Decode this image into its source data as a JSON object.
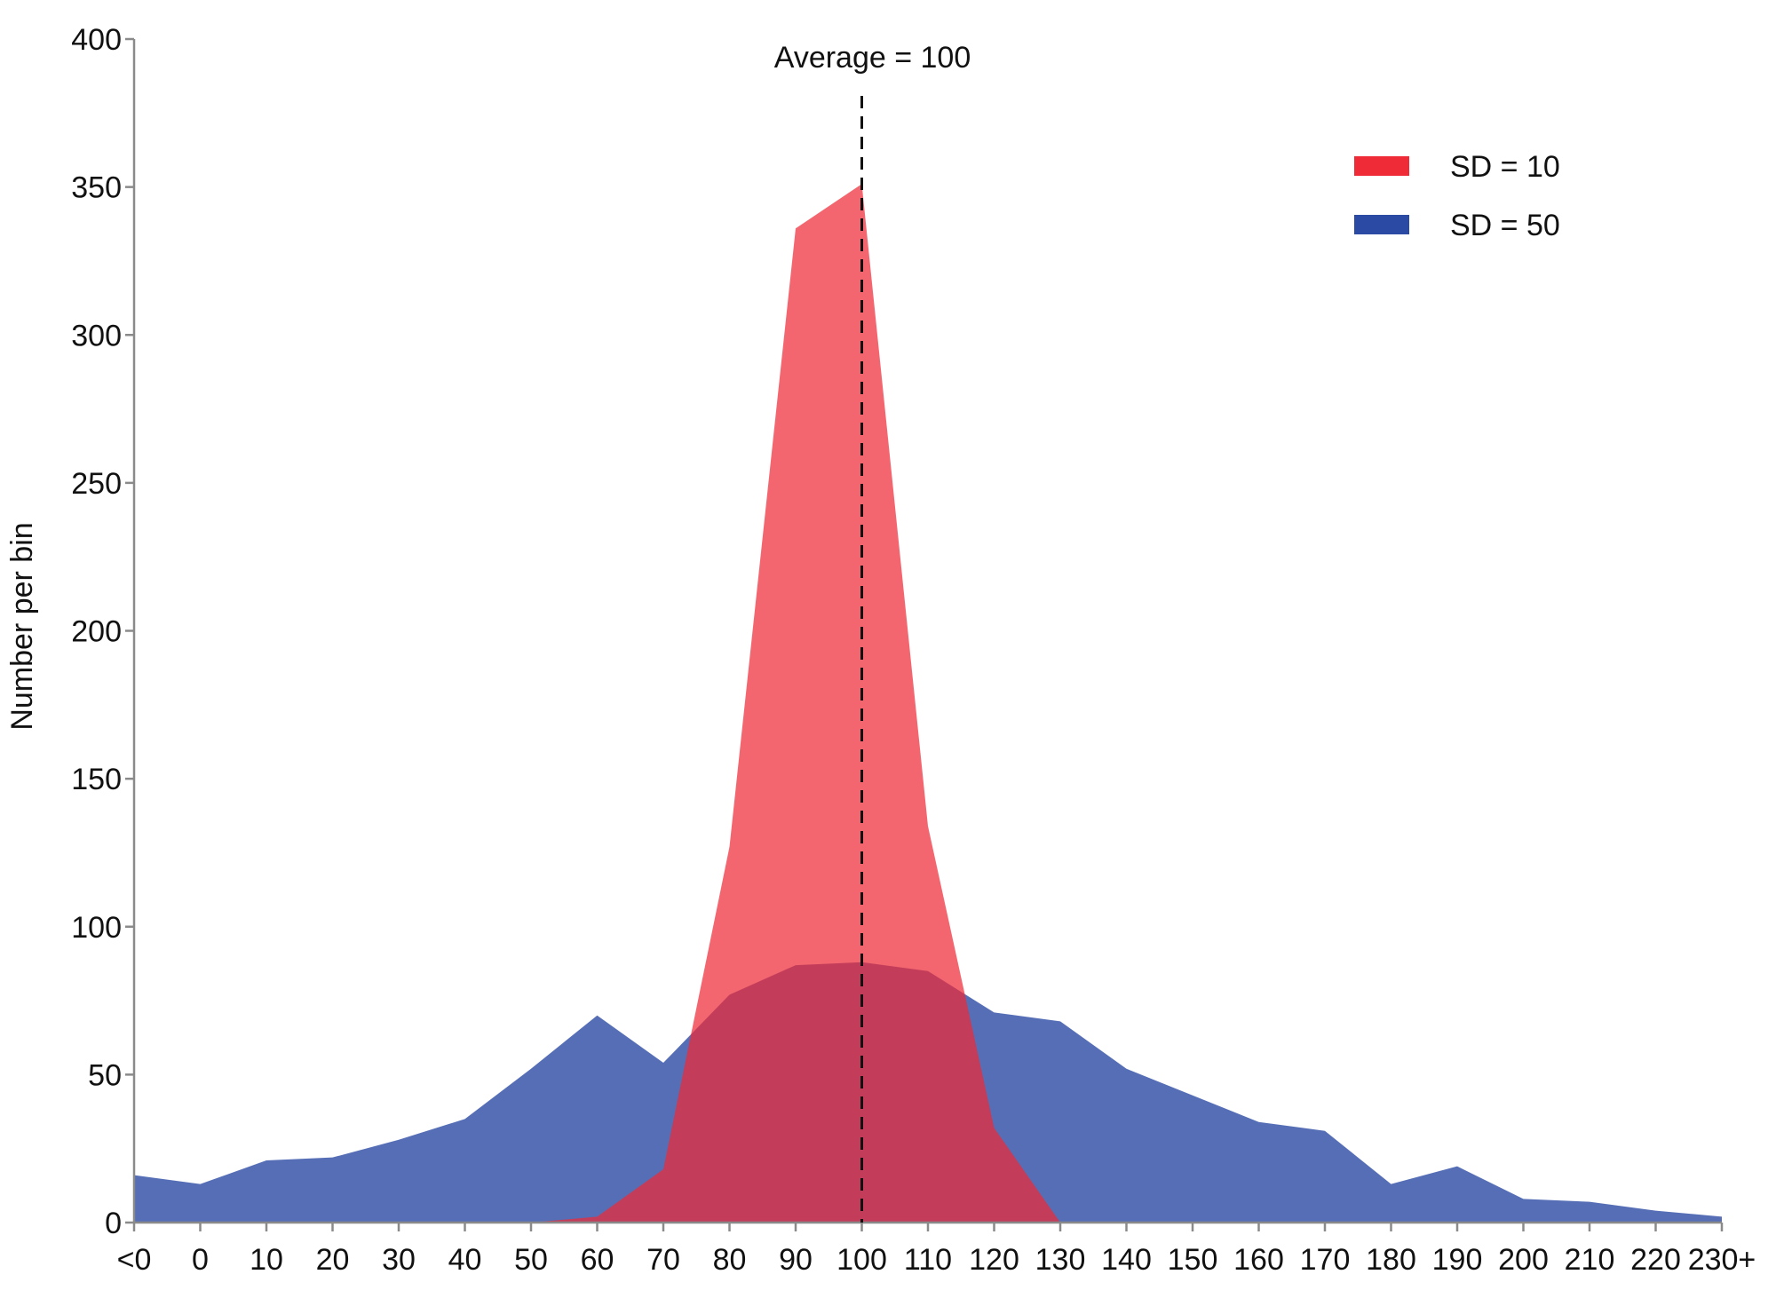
{
  "chart_data": {
    "type": "area",
    "title": "",
    "xlabel": "",
    "ylabel": "Number per bin",
    "categories": [
      "<0",
      "0",
      "10",
      "20",
      "30",
      "40",
      "50",
      "60",
      "70",
      "80",
      "90",
      "100",
      "110",
      "120",
      "130",
      "140",
      "150",
      "160",
      "170",
      "180",
      "190",
      "200",
      "210",
      "220",
      "230+"
    ],
    "ylim": [
      0,
      400
    ],
    "yticks": [
      0,
      50,
      100,
      150,
      200,
      250,
      300,
      350,
      400
    ],
    "grid": false,
    "legend_position": "top-right",
    "series": [
      {
        "name": "SD = 50",
        "color": "#2b4aa3",
        "values": [
          16,
          13,
          21,
          22,
          28,
          35,
          52,
          70,
          54,
          77,
          87,
          88,
          85,
          71,
          68,
          52,
          43,
          34,
          31,
          13,
          19,
          8,
          7,
          4,
          2
        ]
      },
      {
        "name": "SD = 10",
        "color": "#ee2b37",
        "values": [
          0,
          0,
          0,
          0,
          0,
          0,
          0,
          2,
          18,
          127,
          336,
          351,
          134,
          32,
          0,
          0,
          0,
          0,
          0,
          0,
          0,
          0,
          0,
          0,
          0
        ]
      }
    ],
    "annotations": [
      {
        "text": "Average = 100",
        "x": "100",
        "style": "dashed-vertical-line"
      }
    ]
  }
}
